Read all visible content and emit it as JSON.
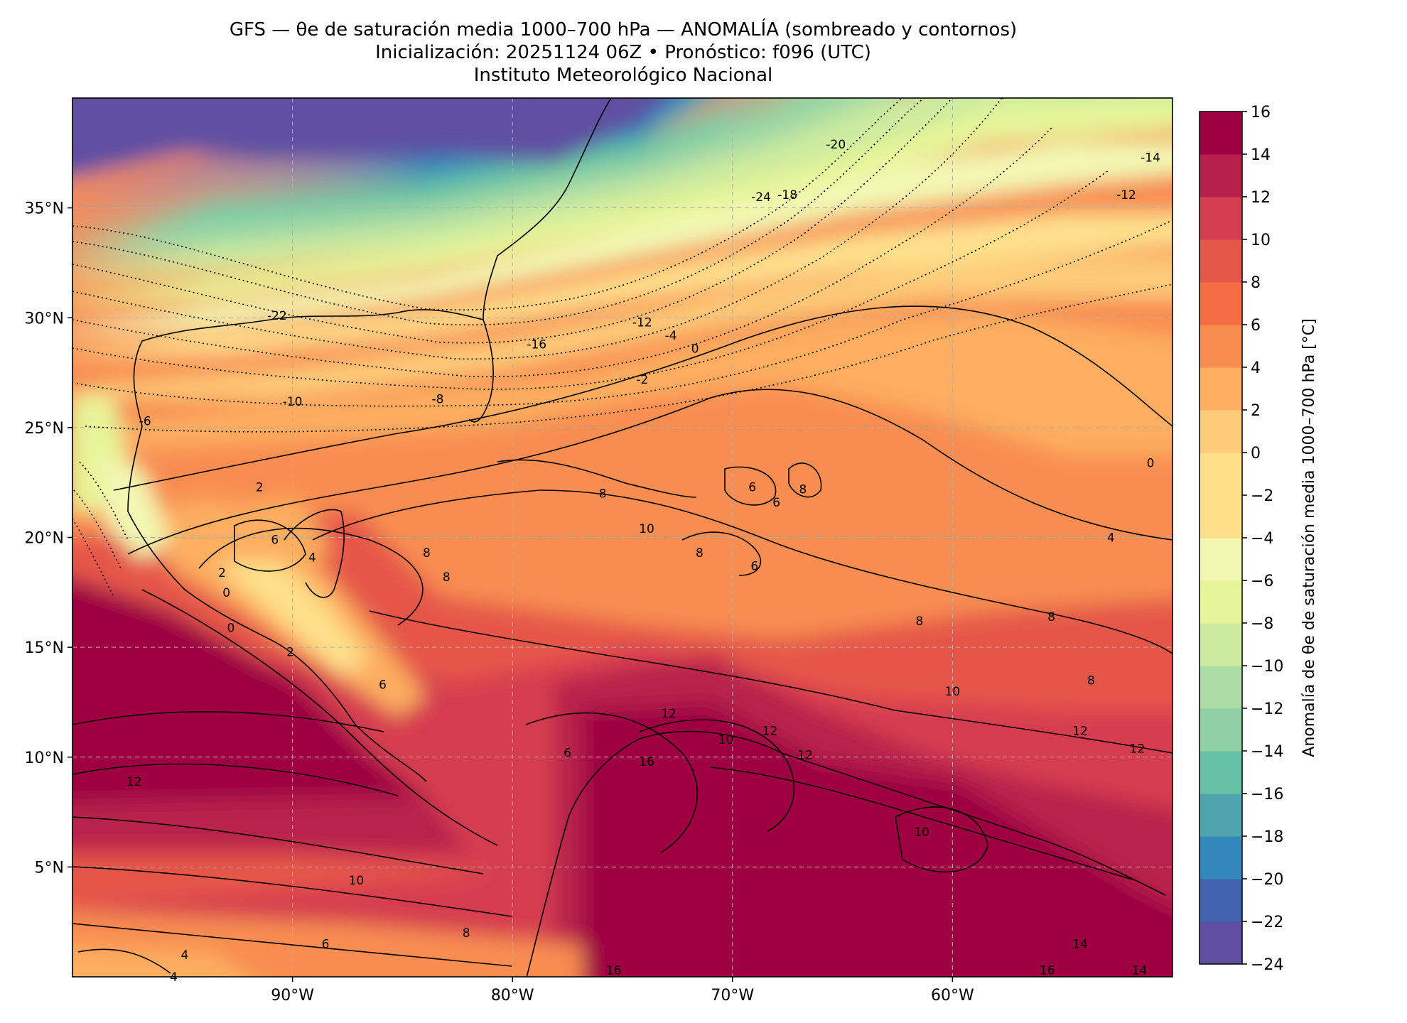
{
  "header": {
    "title_line1": "GFS — θe de saturación media 1000–700 hPa — ANOMALÍA (sombreado y contornos)",
    "title_line2": "Inicialización: 20251124 06Z   •   Pronóstico: f096 (UTC)",
    "title_line3": "Instituto Meteorológico Nacional"
  },
  "map": {
    "lon_range": [
      -100,
      -50
    ],
    "lat_range": [
      0,
      40
    ],
    "lon_ticks": [
      {
        "value": -90,
        "label": "90°W"
      },
      {
        "value": -80,
        "label": "80°W"
      },
      {
        "value": -70,
        "label": "70°W"
      },
      {
        "value": -60,
        "label": "60°W"
      }
    ],
    "lat_ticks": [
      {
        "value": 35,
        "label": "35°N"
      },
      {
        "value": 30,
        "label": "30°N"
      },
      {
        "value": 25,
        "label": "25°N"
      },
      {
        "value": 20,
        "label": "20°N"
      },
      {
        "value": 15,
        "label": "15°N"
      },
      {
        "value": 10,
        "label": "10°N"
      },
      {
        "value": 5,
        "label": "5°N"
      }
    ],
    "gridlines": true,
    "contour_labels": [
      {
        "lon": -90.7,
        "lat": 30.1,
        "text": "-22"
      },
      {
        "lon": -68.7,
        "lat": 35.5,
        "text": "-24"
      },
      {
        "lon": -65.3,
        "lat": 37.9,
        "text": "-20"
      },
      {
        "lon": -67.5,
        "lat": 35.6,
        "text": "-18"
      },
      {
        "lon": -78.9,
        "lat": 28.8,
        "text": "-16"
      },
      {
        "lon": -74.1,
        "lat": 29.8,
        "text": "-12"
      },
      {
        "lon": -90.0,
        "lat": 26.2,
        "text": "-10"
      },
      {
        "lon": -83.4,
        "lat": 26.3,
        "text": "-8"
      },
      {
        "lon": -96.7,
        "lat": 25.3,
        "text": "-6"
      },
      {
        "lon": -74.1,
        "lat": 27.2,
        "text": "-2"
      },
      {
        "lon": -72.8,
        "lat": 29.2,
        "text": "-4"
      },
      {
        "lon": -71.7,
        "lat": 28.6,
        "text": "0"
      },
      {
        "lon": -51.0,
        "lat": 23.4,
        "text": "0"
      },
      {
        "lon": -91.5,
        "lat": 22.3,
        "text": "2"
      },
      {
        "lon": -90.8,
        "lat": 19.9,
        "text": "6"
      },
      {
        "lon": -89.1,
        "lat": 19.1,
        "text": "4"
      },
      {
        "lon": -92.8,
        "lat": 15.9,
        "text": "0"
      },
      {
        "lon": -90.1,
        "lat": 14.8,
        "text": "2"
      },
      {
        "lon": -83.9,
        "lat": 19.3,
        "text": "8"
      },
      {
        "lon": -83.0,
        "lat": 18.2,
        "text": "8"
      },
      {
        "lon": -75.9,
        "lat": 22.0,
        "text": "8"
      },
      {
        "lon": -73.9,
        "lat": 20.4,
        "text": "10"
      },
      {
        "lon": -69.1,
        "lat": 22.3,
        "text": "6"
      },
      {
        "lon": -68.0,
        "lat": 21.6,
        "text": "6"
      },
      {
        "lon": -66.8,
        "lat": 22.2,
        "text": "8"
      },
      {
        "lon": -71.5,
        "lat": 19.3,
        "text": "8"
      },
      {
        "lon": -69.0,
        "lat": 18.7,
        "text": "6"
      },
      {
        "lon": -52.8,
        "lat": 20.0,
        "text": "4"
      },
      {
        "lon": -61.5,
        "lat": 16.2,
        "text": "8"
      },
      {
        "lon": -55.5,
        "lat": 16.4,
        "text": "8"
      },
      {
        "lon": -53.7,
        "lat": 13.5,
        "text": "8"
      },
      {
        "lon": -60.0,
        "lat": 13.0,
        "text": "10"
      },
      {
        "lon": -54.2,
        "lat": 11.2,
        "text": "12"
      },
      {
        "lon": -51.6,
        "lat": 10.4,
        "text": "12"
      },
      {
        "lon": -72.9,
        "lat": 12.0,
        "text": "12"
      },
      {
        "lon": -68.3,
        "lat": 11.2,
        "text": "12"
      },
      {
        "lon": -66.7,
        "lat": 10.1,
        "text": "12"
      },
      {
        "lon": -73.9,
        "lat": 9.8,
        "text": "16"
      },
      {
        "lon": -70.3,
        "lat": 10.8,
        "text": "10"
      },
      {
        "lon": -61.4,
        "lat": 6.6,
        "text": "10"
      },
      {
        "lon": -97.2,
        "lat": 8.9,
        "text": "12"
      },
      {
        "lon": -87.1,
        "lat": 4.4,
        "text": "10"
      },
      {
        "lon": -82.1,
        "lat": 2.0,
        "text": "8"
      },
      {
        "lon": -88.5,
        "lat": 1.5,
        "text": "6"
      },
      {
        "lon": -94.9,
        "lat": 1.0,
        "text": "4"
      },
      {
        "lon": -95.4,
        "lat": 0.0,
        "text": "4"
      },
      {
        "lon": -75.4,
        "lat": 0.3,
        "text": "16"
      },
      {
        "lon": -54.2,
        "lat": 1.5,
        "text": "14"
      },
      {
        "lon": -55.7,
        "lat": 0.3,
        "text": "16"
      },
      {
        "lon": -51.5,
        "lat": 0.3,
        "text": "14"
      },
      {
        "lon": -51.0,
        "lat": 37.3,
        "text": "-14"
      },
      {
        "lon": -52.1,
        "lat": 35.6,
        "text": "-12"
      },
      {
        "lon": -77.5,
        "lat": 10.2,
        "text": "6"
      },
      {
        "lon": -93.2,
        "lat": 18.4,
        "text": "2"
      },
      {
        "lon": -93.0,
        "lat": 17.5,
        "text": "0"
      },
      {
        "lon": -85.9,
        "lat": 13.3,
        "text": "6"
      }
    ]
  },
  "colorbar": {
    "label": "Anomalía de θe de saturación media 1000–700 hPa [°C]",
    "range": [
      -24,
      16
    ],
    "ticks": [
      {
        "value": 16,
        "label": "16"
      },
      {
        "value": 14,
        "label": "14"
      },
      {
        "value": 12,
        "label": "12"
      },
      {
        "value": 10,
        "label": "10"
      },
      {
        "value": 8,
        "label": "8"
      },
      {
        "value": 6,
        "label": "6"
      },
      {
        "value": 4,
        "label": "4"
      },
      {
        "value": 2,
        "label": "2"
      },
      {
        "value": 0,
        "label": "0"
      },
      {
        "value": -2,
        "label": "−2"
      },
      {
        "value": -4,
        "label": "−4"
      },
      {
        "value": -6,
        "label": "−6"
      },
      {
        "value": -8,
        "label": "−8"
      },
      {
        "value": -10,
        "label": "−10"
      },
      {
        "value": -12,
        "label": "−12"
      },
      {
        "value": -14,
        "label": "−14"
      },
      {
        "value": -16,
        "label": "−16"
      },
      {
        "value": -18,
        "label": "−18"
      },
      {
        "value": -20,
        "label": "−20"
      },
      {
        "value": -22,
        "label": "−22"
      },
      {
        "value": -24,
        "label": "−24"
      }
    ],
    "colors": [
      "#5e4fa2",
      "#4263ad",
      "#3288bd",
      "#4ea5b0",
      "#66c2a5",
      "#8fd1a4",
      "#abdda4",
      "#cdeb9f",
      "#e6f598",
      "#f2f8b2",
      "#fee08b",
      "#fee08b",
      "#fdcc7a",
      "#fdae61",
      "#f88d51",
      "#f46d43",
      "#e55748",
      "#d53e4f",
      "#b8204c",
      "#9e0142"
    ]
  }
}
